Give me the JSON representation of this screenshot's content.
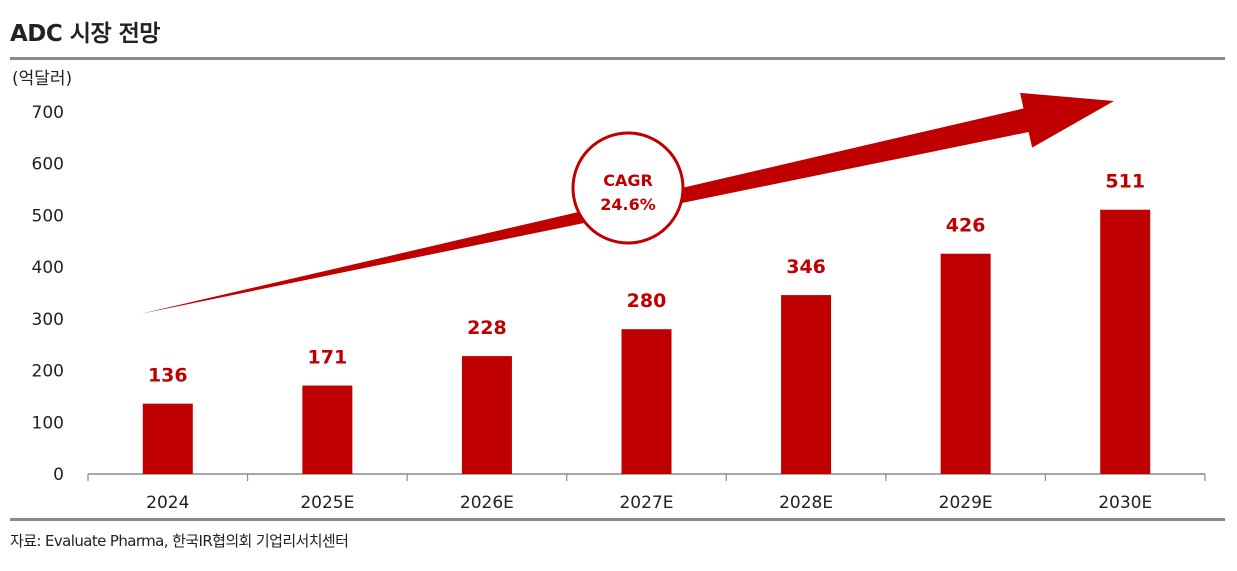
{
  "title": "ADC 시장 전망",
  "source": "자료: Evaluate Pharma, 한국IR협의회 기업리서치센터",
  "chart_data": {
    "type": "bar",
    "title": "ADC 시장 전망",
    "ylabel": "(억달러)",
    "xlabel": "",
    "categories": [
      "2024",
      "2025E",
      "2026E",
      "2027E",
      "2028E",
      "2029E",
      "2030E"
    ],
    "values": [
      136,
      171,
      228,
      280,
      346,
      426,
      511
    ],
    "data_labels": [
      "136",
      "171",
      "228",
      "280",
      "346",
      "426",
      "511"
    ],
    "ylim": [
      0,
      700
    ],
    "yticks": [
      0,
      100,
      200,
      300,
      400,
      500,
      600,
      700
    ],
    "ytick_labels": [
      "0",
      "100",
      "200",
      "300",
      "400",
      "500",
      "600",
      "700"
    ],
    "grid": false,
    "bar_color": "#c00000",
    "label_color": "#c00000",
    "annotation": {
      "line1": "CAGR",
      "line2": "24.6%",
      "shape": "upward arrow with circle badge"
    }
  }
}
